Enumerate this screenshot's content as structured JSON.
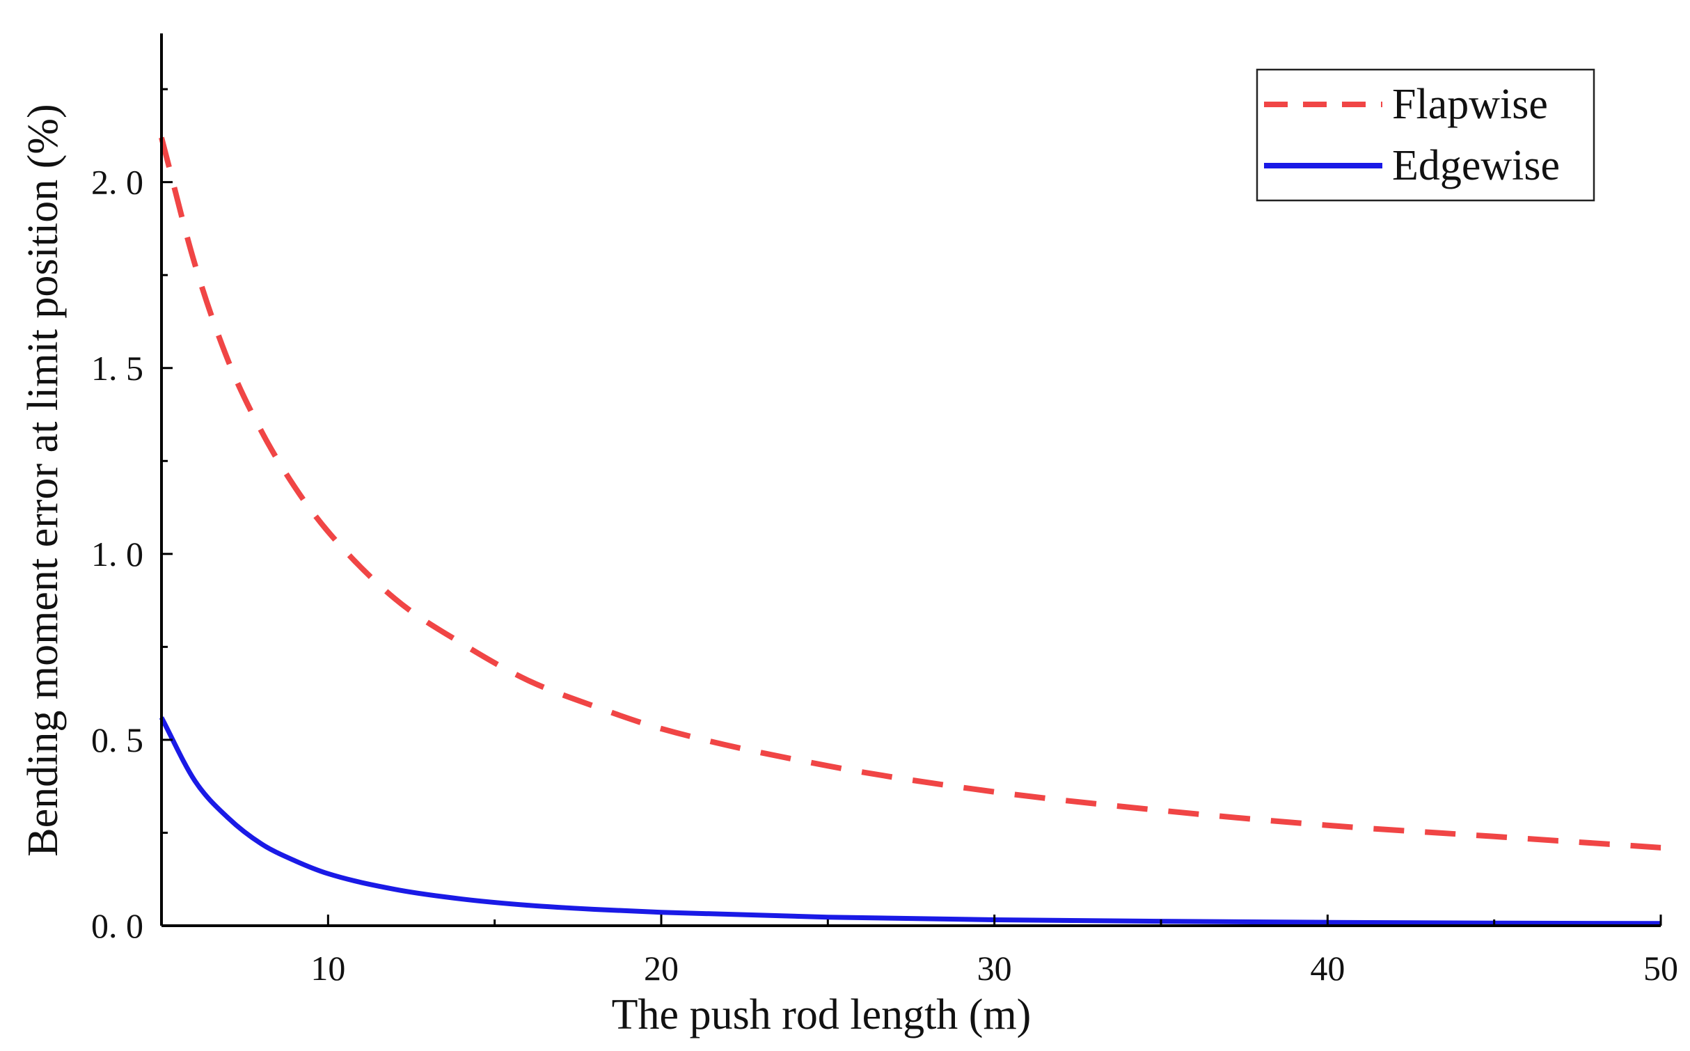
{
  "chart_data": {
    "type": "line",
    "title": "",
    "xlabel": "The push rod length (m)",
    "ylabel": "Bending moment error at limit position (%)",
    "xlim": [
      5,
      50
    ],
    "ylim": [
      0,
      2.4
    ],
    "x_ticks": [
      10,
      20,
      30,
      40,
      50
    ],
    "x_tick_labels": [
      "10",
      "20",
      "30",
      "40",
      "50"
    ],
    "y_ticks": [
      0,
      0.5,
      1.0,
      1.5,
      2.0
    ],
    "y_tick_labels": [
      "0. 0",
      "0. 5",
      "1. 0",
      "1. 5",
      "2. 0"
    ],
    "grid": false,
    "legend_position": "top-right",
    "series": [
      {
        "name": "Flapwise",
        "style": "dashed",
        "color": "#f04545",
        "x": [
          5,
          6,
          7,
          8,
          9,
          10,
          12,
          14,
          16,
          18,
          20,
          25,
          30,
          35,
          40,
          45,
          50
        ],
        "values": [
          2.12,
          1.78,
          1.52,
          1.33,
          1.18,
          1.06,
          0.88,
          0.76,
          0.66,
          0.59,
          0.53,
          0.43,
          0.36,
          0.31,
          0.27,
          0.24,
          0.21
        ]
      },
      {
        "name": "Edgewise",
        "style": "solid",
        "color": "#1a1ae6",
        "x": [
          5,
          6,
          7,
          8,
          9,
          10,
          12,
          14,
          16,
          18,
          20,
          25,
          30,
          35,
          40,
          45,
          50
        ],
        "values": [
          0.56,
          0.39,
          0.29,
          0.22,
          0.175,
          0.14,
          0.098,
          0.072,
          0.055,
          0.044,
          0.036,
          0.023,
          0.016,
          0.012,
          0.009,
          0.007,
          0.006
        ]
      }
    ]
  }
}
